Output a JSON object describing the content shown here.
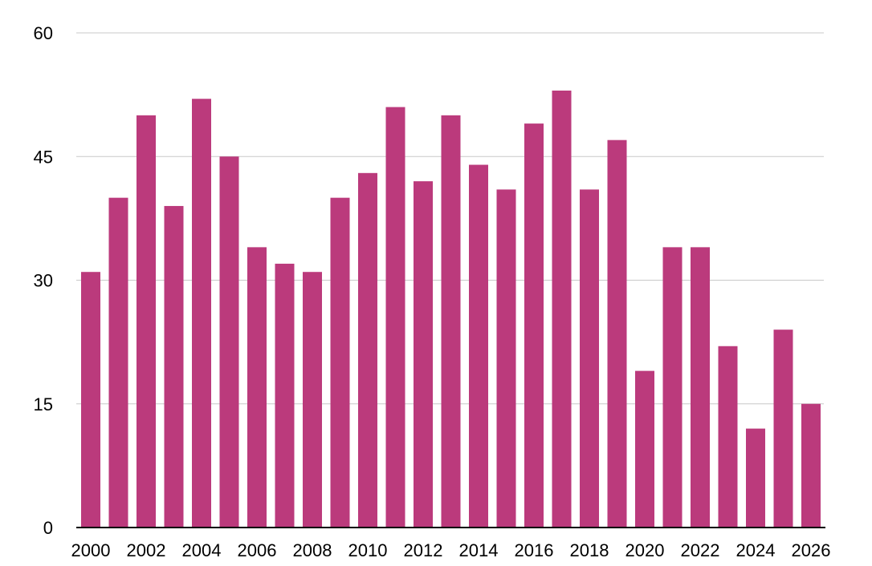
{
  "chart_data": {
    "type": "bar",
    "title": "",
    "xlabel": "",
    "ylabel": "",
    "categories": [
      "2000",
      "2001",
      "2002",
      "2003",
      "2004",
      "2005",
      "2006",
      "2007",
      "2008",
      "2009",
      "2010",
      "2011",
      "2012",
      "2013",
      "2014",
      "2015",
      "2016",
      "2017",
      "2018",
      "2019",
      "2020",
      "2021",
      "2022",
      "2023",
      "2024",
      "2025",
      "2026"
    ],
    "x_tick_labels": [
      "2000",
      "2002",
      "2004",
      "2006",
      "2008",
      "2010",
      "2012",
      "2014",
      "2016",
      "2018",
      "2020",
      "2022",
      "2024",
      "2026"
    ],
    "values": [
      31,
      40,
      50,
      39,
      52,
      45,
      34,
      32,
      31,
      40,
      43,
      51,
      42,
      50,
      44,
      41,
      49,
      53,
      41,
      47,
      19,
      34,
      34,
      22,
      12,
      24,
      15
    ],
    "ylim": [
      0,
      60
    ],
    "y_ticks": [
      0,
      15,
      30,
      45,
      60
    ],
    "grid": true,
    "legend": "none",
    "bar_color": "#bb3a7c"
  }
}
